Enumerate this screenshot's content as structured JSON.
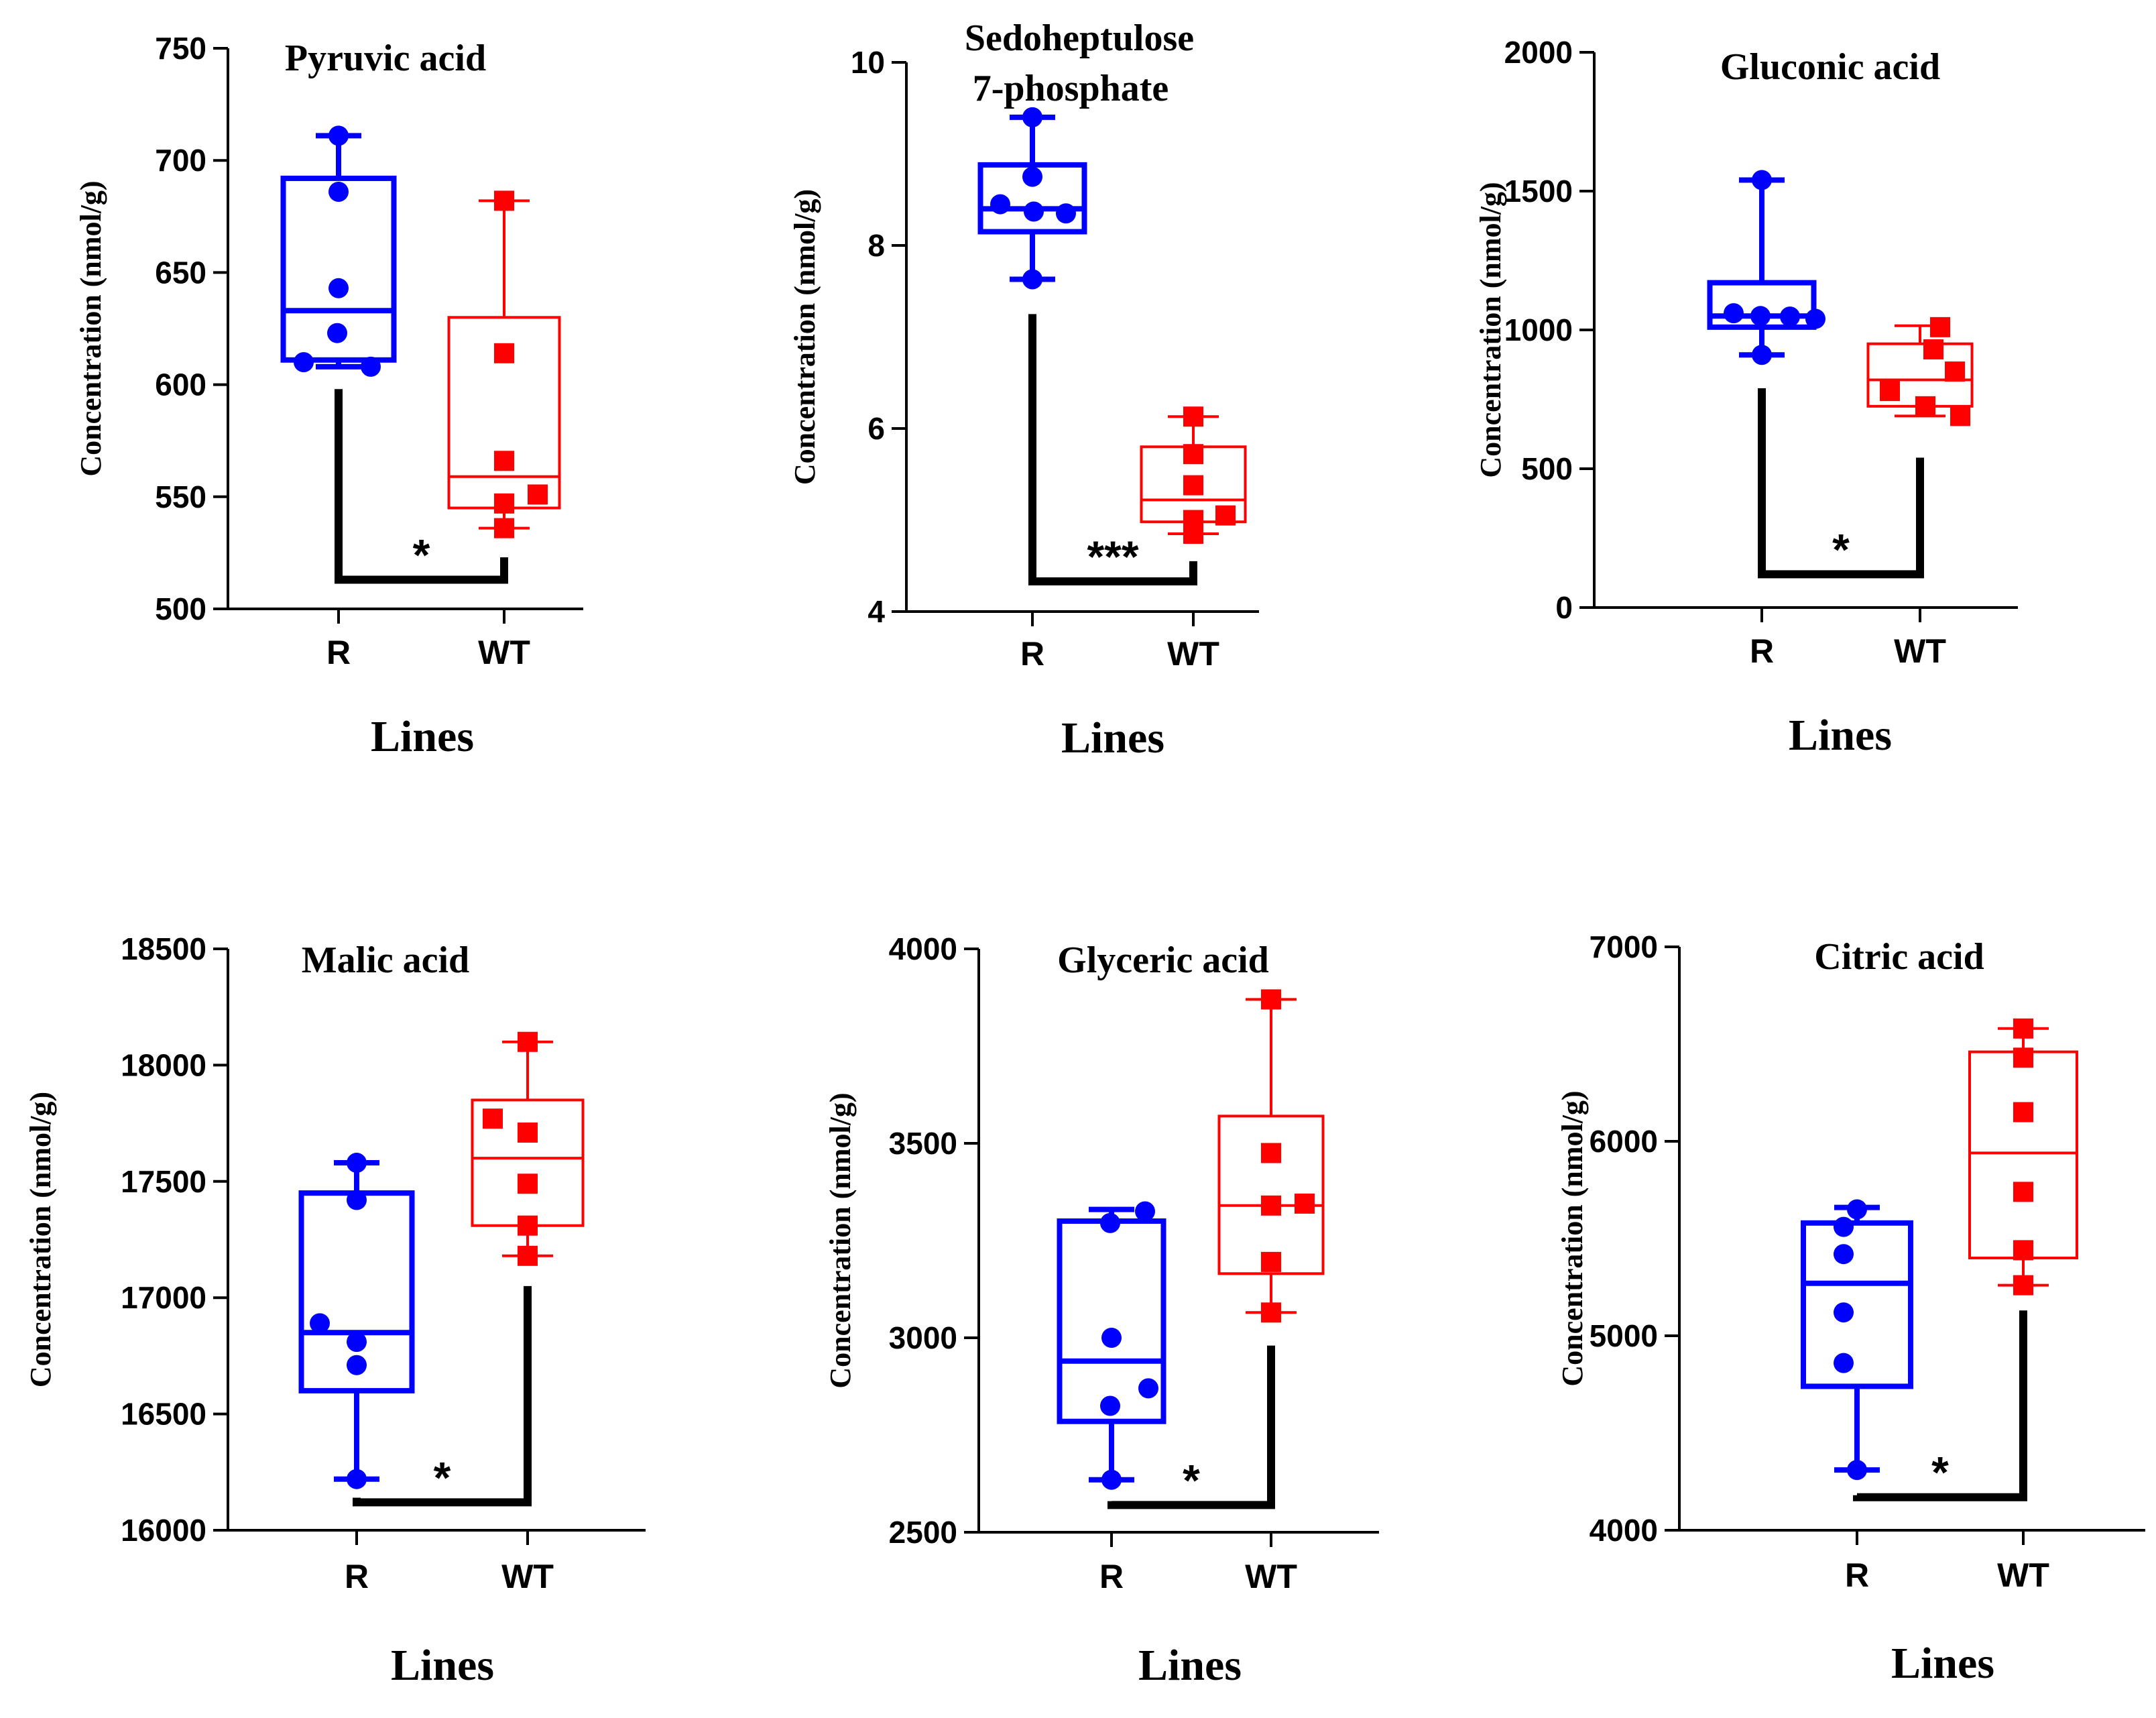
{
  "figure": {
    "colors": {
      "R": "#0000FF",
      "WT": "#FF0000",
      "axis": "#000000",
      "bracket": "#000000"
    }
  },
  "chart_data": [
    {
      "type": "box",
      "title": "Pyruvic acid",
      "ylabel": "Concentration (nmol/g)",
      "xlabel": "Lines",
      "categories": [
        "R",
        "WT"
      ],
      "ylim": [
        500,
        750
      ],
      "yticks": [
        500,
        550,
        600,
        650,
        700,
        750
      ],
      "series": [
        {
          "name": "R",
          "whisker_low": 608,
          "q1": 611,
          "median": 633,
          "q3": 692,
          "whisker_high": 711,
          "points": [
            711,
            686,
            643,
            623,
            610,
            608
          ]
        },
        {
          "name": "WT",
          "whisker_low": 536,
          "q1": 545,
          "median": 559,
          "q3": 630,
          "whisker_high": 682,
          "points": [
            682,
            614,
            566,
            551,
            547,
            536
          ]
        }
      ],
      "significance": "*",
      "bracket": {
        "R_top": 598,
        "WT_top": 523,
        "bottom": 513
      }
    },
    {
      "type": "box",
      "title": "Sedoheptulose 7-phosphate",
      "ylabel": "Concentration (nmol/g)",
      "xlabel": "Lines",
      "categories": [
        "R",
        "WT"
      ],
      "ylim": [
        4,
        10
      ],
      "yticks": [
        4,
        6,
        8,
        10
      ],
      "series": [
        {
          "name": "R",
          "whisker_low": 7.63,
          "q1": 8.15,
          "median": 8.4,
          "q3": 8.88,
          "whisker_high": 9.4,
          "points": [
            9.4,
            8.75,
            8.45,
            8.37,
            8.35,
            7.63
          ]
        },
        {
          "name": "WT",
          "whisker_low": 4.85,
          "q1": 4.98,
          "median": 5.22,
          "q3": 5.8,
          "whisker_high": 6.13,
          "points": [
            6.13,
            5.72,
            5.38,
            5.05,
            5.0,
            4.85
          ]
        }
      ],
      "significance": "***",
      "bracket": {
        "R_top": 7.25,
        "WT_top": 4.55,
        "bottom": 4.33
      }
    },
    {
      "type": "box",
      "title": "Gluconic acid",
      "ylabel": "Concentration (nmol/g)",
      "xlabel": "Lines",
      "categories": [
        "R",
        "WT"
      ],
      "ylim": [
        0,
        2000
      ],
      "yticks": [
        0,
        500,
        1000,
        1500,
        2000
      ],
      "series": [
        {
          "name": "R",
          "whisker_low": 910,
          "q1": 1010,
          "median": 1050,
          "q3": 1170,
          "whisker_high": 1540,
          "points": [
            1540,
            1060,
            1050,
            1048,
            1040,
            910
          ]
        },
        {
          "name": "WT",
          "whisker_low": 690,
          "q1": 725,
          "median": 820,
          "q3": 950,
          "whisker_high": 1015,
          "points": [
            1010,
            930,
            850,
            780,
            725,
            690
          ]
        }
      ],
      "significance": "*",
      "bracket": {
        "R_top": 790,
        "WT_top": 540,
        "bottom": 120
      }
    },
    {
      "type": "box",
      "title": "Malic acid",
      "ylabel": "Concentration (nmol/g)",
      "xlabel": "Lines",
      "categories": [
        "R",
        "WT"
      ],
      "ylim": [
        16000,
        18500
      ],
      "yticks": [
        16000,
        16500,
        17000,
        17500,
        18000,
        18500
      ],
      "series": [
        {
          "name": "R",
          "whisker_low": 16220,
          "q1": 16600,
          "median": 16850,
          "q3": 17450,
          "whisker_high": 17580,
          "points": [
            17580,
            17420,
            16890,
            16810,
            16710,
            16220
          ]
        },
        {
          "name": "WT",
          "whisker_low": 17180,
          "q1": 17310,
          "median": 17600,
          "q3": 17850,
          "whisker_high": 18100,
          "points": [
            18100,
            17770,
            17710,
            17490,
            17310,
            17180
          ]
        }
      ],
      "significance": "*",
      "bracket": {
        "R_top": 16140,
        "WT_top": 17050,
        "bottom": 16120
      }
    },
    {
      "type": "box",
      "title": "Glyceric acid",
      "ylabel": "Concentration (nmol/g)",
      "xlabel": "Lines",
      "categories": [
        "R",
        "WT"
      ],
      "ylim": [
        2500,
        4000
      ],
      "yticks": [
        2500,
        3000,
        3500,
        4000
      ],
      "series": [
        {
          "name": "R",
          "whisker_low": 2635,
          "q1": 2785,
          "median": 2940,
          "q3": 3300,
          "whisker_high": 3330,
          "points": [
            3325,
            3295,
            3000,
            2870,
            2825,
            2635
          ]
        },
        {
          "name": "WT",
          "whisker_low": 3065,
          "q1": 3165,
          "median": 3340,
          "q3": 3570,
          "whisker_high": 3870,
          "points": [
            3870,
            3475,
            3345,
            3340,
            3195,
            3065
          ]
        }
      ],
      "significance": "*",
      "bracket": {
        "R_top": 2580,
        "WT_top": 2980,
        "bottom": 2570
      }
    },
    {
      "type": "box",
      "title": "Citric acid",
      "ylabel": "Concentration (nmol/g)",
      "xlabel": "Lines",
      "categories": [
        "R",
        "WT"
      ],
      "ylim": [
        4000,
        7000
      ],
      "yticks": [
        4000,
        5000,
        6000,
        7000
      ],
      "series": [
        {
          "name": "R",
          "whisker_low": 4310,
          "q1": 4740,
          "median": 5270,
          "q3": 5580,
          "whisker_high": 5660,
          "points": [
            5650,
            5560,
            5420,
            5120,
            4860,
            4310
          ]
        },
        {
          "name": "WT",
          "whisker_low": 5260,
          "q1": 5400,
          "median": 5940,
          "q3": 6460,
          "whisker_high": 6580,
          "points": [
            6580,
            6430,
            6150,
            5740,
            5440,
            5260
          ]
        }
      ],
      "significance": "*",
      "bracket": {
        "R_top": 4180,
        "WT_top": 5130,
        "bottom": 4170
      }
    }
  ]
}
